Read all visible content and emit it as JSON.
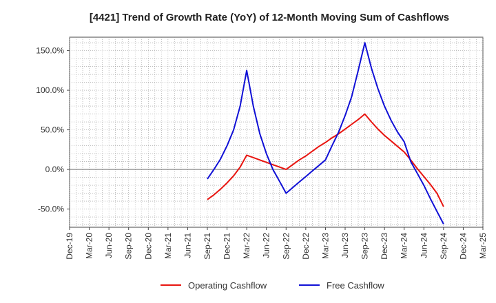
{
  "chart_data": {
    "type": "line",
    "title": "[4421]  Trend of Growth Rate (YoY) of 12-Month Moving Sum of Cashflows",
    "xlabel": "",
    "ylabel": "",
    "x_ticks": [
      "Dec-19",
      "Mar-20",
      "Jun-20",
      "Sep-20",
      "Dec-20",
      "Mar-21",
      "Jun-21",
      "Sep-21",
      "Dec-21",
      "Mar-22",
      "Jun-22",
      "Sep-22",
      "Dec-22",
      "Mar-23",
      "Jun-23",
      "Sep-23",
      "Dec-23",
      "Mar-24",
      "Jun-24",
      "Sep-24",
      "Dec-24",
      "Mar-25"
    ],
    "y_ticks": [
      "-50.0%",
      "0.0%",
      "50.0%",
      "100.0%",
      "150.0%"
    ],
    "y_tick_values": [
      -50,
      0,
      50,
      100,
      150
    ],
    "ylim": [
      -73,
      167
    ],
    "grid": true,
    "legend_position": "bottom",
    "series": [
      {
        "name": "Operating Cashflow",
        "color": "#e8140f",
        "points": [
          [
            "Sep-21",
            -38
          ],
          [
            "Oct-21",
            -32
          ],
          [
            "Nov-21",
            -25
          ],
          [
            "Dec-21",
            -17
          ],
          [
            "Jan-22",
            -8
          ],
          [
            "Feb-22",
            3
          ],
          [
            "Mar-22",
            18
          ],
          [
            "Apr-22",
            15
          ],
          [
            "May-22",
            12
          ],
          [
            "Jun-22",
            9
          ],
          [
            "Jul-22",
            6
          ],
          [
            "Aug-22",
            3
          ],
          [
            "Sep-22",
            0
          ],
          [
            "Oct-22",
            6
          ],
          [
            "Nov-22",
            12
          ],
          [
            "Dec-22",
            17
          ],
          [
            "Jan-23",
            23
          ],
          [
            "Feb-23",
            29
          ],
          [
            "Mar-23",
            34
          ],
          [
            "Apr-23",
            40
          ],
          [
            "May-23",
            45
          ],
          [
            "Jun-23",
            51
          ],
          [
            "Jul-23",
            57
          ],
          [
            "Aug-23",
            63
          ],
          [
            "Sep-23",
            70
          ],
          [
            "Oct-23",
            60
          ],
          [
            "Nov-23",
            51
          ],
          [
            "Dec-23",
            43
          ],
          [
            "Jan-24",
            36
          ],
          [
            "Feb-24",
            29
          ],
          [
            "Mar-24",
            22
          ],
          [
            "Apr-24",
            12
          ],
          [
            "May-24",
            1
          ],
          [
            "Jun-24",
            -9
          ],
          [
            "Jul-24",
            -19
          ],
          [
            "Aug-24",
            -30
          ],
          [
            "Sep-24",
            -47
          ]
        ]
      },
      {
        "name": "Free Cashflow",
        "color": "#1010d6",
        "points": [
          [
            "Sep-21",
            -12
          ],
          [
            "Oct-21",
            0
          ],
          [
            "Nov-21",
            13
          ],
          [
            "Dec-21",
            30
          ],
          [
            "Jan-22",
            50
          ],
          [
            "Feb-22",
            80
          ],
          [
            "Mar-22",
            125
          ],
          [
            "Apr-22",
            80
          ],
          [
            "May-22",
            45
          ],
          [
            "Jun-22",
            20
          ],
          [
            "Jul-22",
            0
          ],
          [
            "Aug-22",
            -15
          ],
          [
            "Sep-22",
            -30
          ],
          [
            "Oct-22",
            -23
          ],
          [
            "Nov-22",
            -16
          ],
          [
            "Dec-22",
            -9
          ],
          [
            "Jan-23",
            -2
          ],
          [
            "Feb-23",
            5
          ],
          [
            "Mar-23",
            12
          ],
          [
            "Apr-23",
            30
          ],
          [
            "May-23",
            47
          ],
          [
            "Jun-23",
            68
          ],
          [
            "Jul-23",
            92
          ],
          [
            "Aug-23",
            125
          ],
          [
            "Sep-23",
            160
          ],
          [
            "Oct-23",
            128
          ],
          [
            "Nov-23",
            102
          ],
          [
            "Dec-23",
            80
          ],
          [
            "Jan-24",
            62
          ],
          [
            "Feb-24",
            47
          ],
          [
            "Mar-24",
            35
          ],
          [
            "Apr-24",
            10
          ],
          [
            "May-24",
            -5
          ],
          [
            "Jun-24",
            -20
          ],
          [
            "Jul-24",
            -37
          ],
          [
            "Aug-24",
            -53
          ],
          [
            "Sep-24",
            -69
          ]
        ]
      }
    ]
  }
}
